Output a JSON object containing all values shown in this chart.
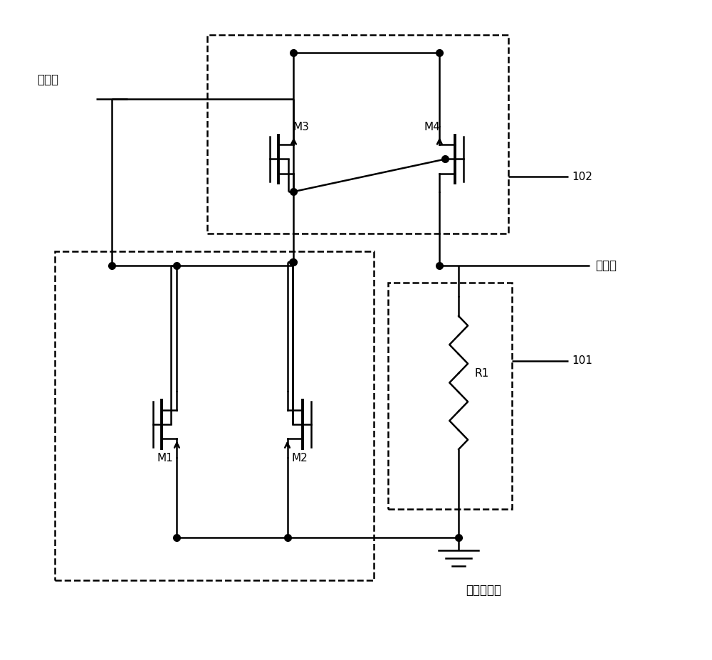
{
  "bg_color": "#ffffff",
  "line_color": "#000000",
  "fig_width": 10.0,
  "fig_height": 9.27,
  "labels": {
    "input": "输入端",
    "output": "输出端",
    "voltage": "第一电压端",
    "M1": "M1",
    "M2": "M2",
    "M3": "M3",
    "M4": "M4",
    "R1": "R1",
    "label101": "101",
    "label102": "102"
  }
}
